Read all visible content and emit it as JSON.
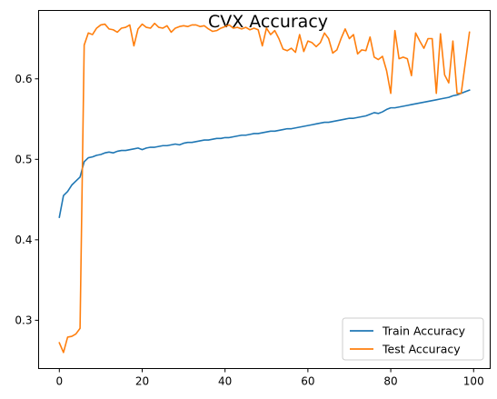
{
  "chart_data": {
    "type": "line",
    "title": "CVX Accuracy",
    "xlabel": "",
    "ylabel": "",
    "xlim": [
      -5,
      104
    ],
    "ylim": [
      0.24,
      0.685
    ],
    "x_ticks": [
      0,
      20,
      40,
      60,
      80,
      100
    ],
    "y_ticks": [
      0.3,
      0.4,
      0.5,
      0.6
    ],
    "grid": false,
    "legend_position": "lower-right",
    "series": [
      {
        "name": "Train Accuracy",
        "color": "#1f77b4",
        "x": [
          0,
          1,
          2,
          3,
          4,
          5,
          6,
          7,
          8,
          9,
          10,
          11,
          12,
          13,
          14,
          15,
          16,
          17,
          18,
          19,
          20,
          21,
          22,
          23,
          24,
          25,
          26,
          27,
          28,
          29,
          30,
          31,
          32,
          33,
          34,
          35,
          36,
          37,
          38,
          39,
          40,
          41,
          42,
          43,
          44,
          45,
          46,
          47,
          48,
          49,
          50,
          51,
          52,
          53,
          54,
          55,
          56,
          57,
          58,
          59,
          60,
          61,
          62,
          63,
          64,
          65,
          66,
          67,
          68,
          69,
          70,
          71,
          72,
          73,
          74,
          75,
          76,
          77,
          78,
          79,
          80,
          81,
          82,
          83,
          84,
          85,
          86,
          87,
          88,
          89,
          90,
          91,
          92,
          93,
          94,
          95,
          96,
          97,
          98,
          99
        ],
        "values": [
          0.428,
          0.455,
          0.46,
          0.468,
          0.473,
          0.478,
          0.497,
          0.502,
          0.503,
          0.505,
          0.506,
          0.508,
          0.509,
          0.508,
          0.51,
          0.511,
          0.511,
          0.512,
          0.513,
          0.514,
          0.512,
          0.514,
          0.515,
          0.515,
          0.516,
          0.517,
          0.517,
          0.518,
          0.519,
          0.518,
          0.52,
          0.521,
          0.521,
          0.522,
          0.523,
          0.524,
          0.524,
          0.525,
          0.526,
          0.526,
          0.527,
          0.527,
          0.528,
          0.529,
          0.53,
          0.53,
          0.531,
          0.532,
          0.532,
          0.533,
          0.534,
          0.535,
          0.535,
          0.536,
          0.537,
          0.538,
          0.538,
          0.539,
          0.54,
          0.541,
          0.542,
          0.543,
          0.544,
          0.545,
          0.546,
          0.546,
          0.547,
          0.548,
          0.549,
          0.55,
          0.551,
          0.551,
          0.552,
          0.553,
          0.554,
          0.556,
          0.558,
          0.557,
          0.559,
          0.562,
          0.564,
          0.564,
          0.565,
          0.566,
          0.567,
          0.568,
          0.569,
          0.57,
          0.571,
          0.572,
          0.573,
          0.574,
          0.575,
          0.576,
          0.577,
          0.579,
          0.58,
          0.582,
          0.584,
          0.586
        ]
      },
      {
        "name": "Test Accuracy",
        "color": "#ff7f0e",
        "x": [
          0,
          1,
          2,
          3,
          4,
          5,
          6,
          7,
          8,
          9,
          10,
          11,
          12,
          13,
          14,
          15,
          16,
          17,
          18,
          19,
          20,
          21,
          22,
          23,
          24,
          25,
          26,
          27,
          28,
          29,
          30,
          31,
          32,
          33,
          34,
          35,
          36,
          37,
          38,
          39,
          40,
          41,
          42,
          43,
          44,
          45,
          46,
          47,
          48,
          49,
          50,
          51,
          52,
          53,
          54,
          55,
          56,
          57,
          58,
          59,
          60,
          61,
          62,
          63,
          64,
          65,
          66,
          67,
          68,
          69,
          70,
          71,
          72,
          73,
          74,
          75,
          76,
          77,
          78,
          79,
          80,
          81,
          82,
          83,
          84,
          85,
          86,
          87,
          88,
          89,
          90,
          91,
          92,
          93,
          94,
          95,
          96,
          97,
          98,
          99
        ],
        "values": [
          0.272,
          0.26,
          0.279,
          0.28,
          0.283,
          0.29,
          0.642,
          0.657,
          0.655,
          0.663,
          0.667,
          0.668,
          0.662,
          0.661,
          0.658,
          0.663,
          0.664,
          0.667,
          0.641,
          0.662,
          0.668,
          0.664,
          0.663,
          0.669,
          0.664,
          0.663,
          0.666,
          0.658,
          0.663,
          0.665,
          0.666,
          0.665,
          0.667,
          0.667,
          0.665,
          0.666,
          0.662,
          0.659,
          0.66,
          0.663,
          0.665,
          0.667,
          0.663,
          0.664,
          0.662,
          0.664,
          0.661,
          0.663,
          0.661,
          0.641,
          0.663,
          0.655,
          0.66,
          0.65,
          0.637,
          0.635,
          0.638,
          0.633,
          0.655,
          0.634,
          0.647,
          0.645,
          0.64,
          0.645,
          0.657,
          0.65,
          0.632,
          0.636,
          0.65,
          0.662,
          0.65,
          0.655,
          0.631,
          0.636,
          0.635,
          0.652,
          0.627,
          0.624,
          0.628,
          0.61,
          0.582,
          0.66,
          0.625,
          0.627,
          0.625,
          0.604,
          0.657,
          0.647,
          0.638,
          0.65,
          0.65,
          0.582,
          0.656,
          0.605,
          0.595,
          0.647,
          0.582,
          0.582,
          0.62,
          0.658
        ]
      }
    ]
  }
}
